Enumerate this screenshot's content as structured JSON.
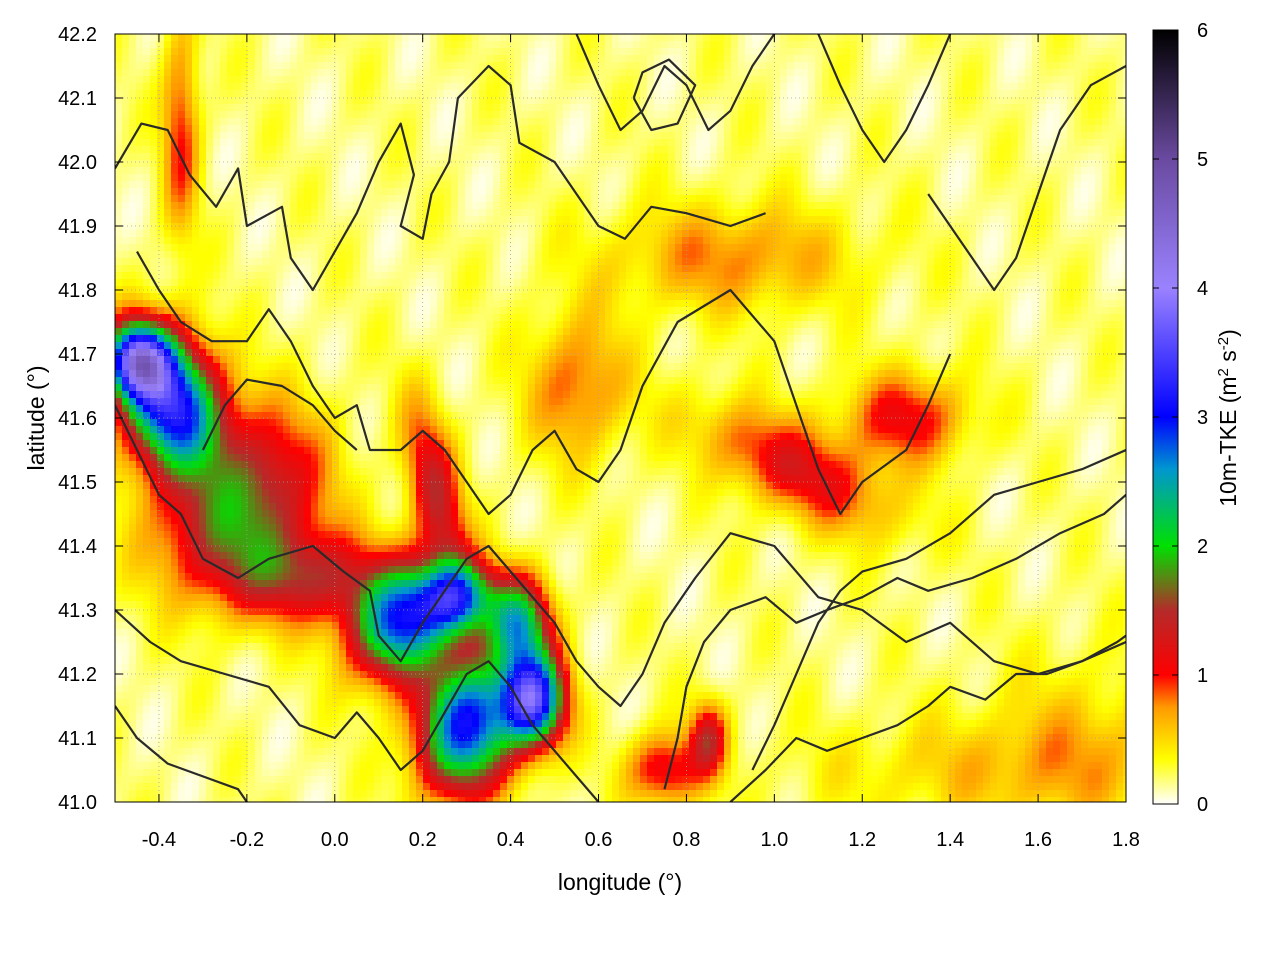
{
  "chart_data": {
    "type": "heatmap",
    "xlabel": "longitude (°)",
    "ylabel": "latitude (°)",
    "xlim": [
      -0.5,
      1.8
    ],
    "ylim": [
      41.0,
      42.2
    ],
    "x_ticks": [
      -0.4,
      -0.2,
      0.0,
      0.2,
      0.4,
      0.6,
      0.8,
      1.0,
      1.2,
      1.4,
      1.6,
      1.8
    ],
    "x_tick_labels": [
      "-0.4",
      "-0.2",
      "0.0",
      "0.2",
      "0.4",
      "0.6",
      "0.8",
      "1.0",
      "1.2",
      "1.4",
      "1.6",
      "1.8"
    ],
    "y_ticks": [
      41.0,
      41.1,
      41.2,
      41.3,
      41.4,
      41.5,
      41.6,
      41.7,
      41.8,
      41.9,
      42.0,
      42.1,
      42.2
    ],
    "y_tick_labels": [
      "41.0",
      "41.1",
      "41.2",
      "41.3",
      "41.4",
      "41.5",
      "41.6",
      "41.7",
      "41.8",
      "41.9",
      "42.0",
      "42.1",
      "42.2"
    ],
    "grid": true,
    "colorbar": {
      "label_main": "10m-TKE (m",
      "label_sup1": "2",
      "label_mid": " s",
      "label_sup2": "-2",
      "label_end": ")",
      "range": [
        0,
        6
      ],
      "ticks": [
        0,
        1,
        2,
        3,
        4,
        5,
        6
      ],
      "tick_labels": [
        "0",
        "1",
        "2",
        "3",
        "4",
        "5",
        "6"
      ],
      "stops": [
        {
          "v": 0.0,
          "color": "#ffffff"
        },
        {
          "v": 0.35,
          "color": "#ffff00"
        },
        {
          "v": 0.75,
          "color": "#ff9a00"
        },
        {
          "v": 1.0,
          "color": "#ff0000"
        },
        {
          "v": 1.5,
          "color": "#b52a2a"
        },
        {
          "v": 2.0,
          "color": "#00e000"
        },
        {
          "v": 2.6,
          "color": "#0096d0"
        },
        {
          "v": 3.0,
          "color": "#0000ff"
        },
        {
          "v": 4.0,
          "color": "#9a82ff"
        },
        {
          "v": 5.0,
          "color": "#6a4aa0"
        },
        {
          "v": 6.0,
          "color": "#000000"
        }
      ]
    },
    "field_features": [
      {
        "lon": -0.37,
        "lat": 41.62,
        "amp": 3.0,
        "sx": 0.08,
        "sy": 0.07,
        "rot": -0.6
      },
      {
        "lon": -0.45,
        "lat": 41.69,
        "amp": 3.2,
        "sx": 0.05,
        "sy": 0.04,
        "rot": 0
      },
      {
        "lon": -0.25,
        "lat": 41.42,
        "amp": 1.2,
        "sx": 0.12,
        "sy": 0.08,
        "rot": 0
      },
      {
        "lon": -0.05,
        "lat": 41.35,
        "amp": 1.1,
        "sx": 0.12,
        "sy": 0.05,
        "rot": 0
      },
      {
        "lon": 0.15,
        "lat": 41.28,
        "amp": 2.6,
        "sx": 0.08,
        "sy": 0.06,
        "rot": 0.3
      },
      {
        "lon": 0.28,
        "lat": 41.32,
        "amp": 2.2,
        "sx": 0.06,
        "sy": 0.04,
        "rot": 0
      },
      {
        "lon": 0.3,
        "lat": 41.12,
        "amp": 2.8,
        "sx": 0.08,
        "sy": 0.07,
        "rot": 0.7
      },
      {
        "lon": 0.45,
        "lat": 41.16,
        "amp": 3.2,
        "sx": 0.05,
        "sy": 0.05,
        "rot": 0
      },
      {
        "lon": 0.42,
        "lat": 41.28,
        "amp": 2.0,
        "sx": 0.05,
        "sy": 0.05,
        "rot": 0
      },
      {
        "lon": 0.23,
        "lat": 41.48,
        "amp": 1.2,
        "sx": 0.04,
        "sy": 0.1,
        "rot": 0.3
      },
      {
        "lon": -0.15,
        "lat": 41.52,
        "amp": 0.9,
        "sx": 0.1,
        "sy": 0.08,
        "rot": 0
      },
      {
        "lon": 1.05,
        "lat": 41.52,
        "amp": 1.0,
        "sx": 0.16,
        "sy": 0.05,
        "rot": -0.3
      },
      {
        "lon": 1.3,
        "lat": 41.6,
        "amp": 0.9,
        "sx": 0.1,
        "sy": 0.05,
        "rot": 0
      },
      {
        "lon": 0.9,
        "lat": 41.85,
        "amp": 0.6,
        "sx": 0.2,
        "sy": 0.06,
        "rot": 0
      },
      {
        "lon": -0.35,
        "lat": 42.05,
        "amp": 0.8,
        "sx": 0.03,
        "sy": 0.12,
        "rot": 0
      },
      {
        "lon": 0.75,
        "lat": 41.05,
        "amp": 1.0,
        "sx": 0.06,
        "sy": 0.04,
        "rot": 0
      },
      {
        "lon": 0.85,
        "lat": 41.1,
        "amp": 1.1,
        "sx": 0.03,
        "sy": 0.04,
        "rot": 0
      },
      {
        "lon": 0.55,
        "lat": 41.65,
        "amp": 0.7,
        "sx": 0.08,
        "sy": 0.08,
        "rot": 0
      },
      {
        "lon": 1.5,
        "lat": 41.05,
        "amp": 0.35,
        "sx": 0.3,
        "sy": 0.06,
        "rot": 0
      },
      {
        "lon": 1.7,
        "lat": 41.1,
        "amp": 0.3,
        "sx": 0.15,
        "sy": 0.1,
        "rot": 0
      }
    ],
    "contours": [
      [
        [
          -0.5,
          41.99
        ],
        [
          -0.44,
          42.06
        ],
        [
          -0.38,
          42.05
        ],
        [
          -0.33,
          41.98
        ],
        [
          -0.27,
          41.93
        ],
        [
          -0.22,
          41.99
        ],
        [
          -0.2,
          41.9
        ],
        [
          -0.12,
          41.93
        ],
        [
          -0.1,
          41.85
        ],
        [
          -0.05,
          41.8
        ],
        [
          0.0,
          41.86
        ],
        [
          0.05,
          41.92
        ],
        [
          0.1,
          42.0
        ],
        [
          0.15,
          42.06
        ],
        [
          0.18,
          41.98
        ],
        [
          0.15,
          41.9
        ],
        [
          0.2,
          41.88
        ],
        [
          0.22,
          41.95
        ],
        [
          0.26,
          42.0
        ],
        [
          0.28,
          42.1
        ],
        [
          0.35,
          42.15
        ],
        [
          0.4,
          42.12
        ],
        [
          0.42,
          42.03
        ],
        [
          0.5,
          42.0
        ],
        [
          0.55,
          41.95
        ],
        [
          0.6,
          41.9
        ],
        [
          0.66,
          41.88
        ],
        [
          0.72,
          41.93
        ],
        [
          0.8,
          41.92
        ],
        [
          0.9,
          41.9
        ],
        [
          0.98,
          41.92
        ]
      ],
      [
        [
          -0.45,
          41.86
        ],
        [
          -0.4,
          41.8
        ],
        [
          -0.35,
          41.75
        ],
        [
          -0.28,
          41.72
        ],
        [
          -0.2,
          41.72
        ],
        [
          -0.15,
          41.77
        ],
        [
          -0.1,
          41.72
        ],
        [
          -0.05,
          41.65
        ],
        [
          0.0,
          41.6
        ],
        [
          0.05,
          41.62
        ],
        [
          0.08,
          41.55
        ],
        [
          0.15,
          41.55
        ],
        [
          0.2,
          41.58
        ],
        [
          0.25,
          41.55
        ],
        [
          0.3,
          41.5
        ],
        [
          0.35,
          41.45
        ],
        [
          0.4,
          41.48
        ],
        [
          0.45,
          41.55
        ],
        [
          0.5,
          41.58
        ],
        [
          0.55,
          41.52
        ],
        [
          0.6,
          41.5
        ],
        [
          0.65,
          41.55
        ],
        [
          0.7,
          41.65
        ],
        [
          0.78,
          41.75
        ],
        [
          0.9,
          41.8
        ],
        [
          1.0,
          41.72
        ],
        [
          1.05,
          41.62
        ],
        [
          1.1,
          41.52
        ],
        [
          1.15,
          41.45
        ],
        [
          1.2,
          41.5
        ],
        [
          1.3,
          41.55
        ],
        [
          1.35,
          41.62
        ],
        [
          1.4,
          41.7
        ]
      ],
      [
        [
          -0.5,
          41.62
        ],
        [
          -0.45,
          41.55
        ],
        [
          -0.4,
          41.48
        ],
        [
          -0.35,
          41.45
        ],
        [
          -0.3,
          41.38
        ],
        [
          -0.22,
          41.35
        ],
        [
          -0.15,
          41.38
        ],
        [
          -0.05,
          41.4
        ],
        [
          0.02,
          41.36
        ],
        [
          0.08,
          41.33
        ],
        [
          0.1,
          41.26
        ],
        [
          0.15,
          41.22
        ],
        [
          0.2,
          41.28
        ],
        [
          0.25,
          41.33
        ],
        [
          0.3,
          41.38
        ],
        [
          0.35,
          41.4
        ],
        [
          0.4,
          41.36
        ],
        [
          0.45,
          41.32
        ],
        [
          0.5,
          41.28
        ],
        [
          0.55,
          41.22
        ],
        [
          0.6,
          41.18
        ],
        [
          0.65,
          41.15
        ],
        [
          0.7,
          41.2
        ],
        [
          0.75,
          41.28
        ],
        [
          0.82,
          41.35
        ],
        [
          0.9,
          41.42
        ],
        [
          1.0,
          41.4
        ],
        [
          1.1,
          41.32
        ],
        [
          1.2,
          41.3
        ],
        [
          1.3,
          41.25
        ],
        [
          1.4,
          41.28
        ],
        [
          1.5,
          41.22
        ],
        [
          1.6,
          41.2
        ],
        [
          1.7,
          41.22
        ],
        [
          1.8,
          41.25
        ]
      ],
      [
        [
          -0.5,
          41.3
        ],
        [
          -0.42,
          41.25
        ],
        [
          -0.35,
          41.22
        ],
        [
          -0.25,
          41.2
        ],
        [
          -0.15,
          41.18
        ],
        [
          -0.08,
          41.12
        ],
        [
          0.0,
          41.1
        ],
        [
          0.05,
          41.14
        ],
        [
          0.1,
          41.1
        ],
        [
          0.15,
          41.05
        ],
        [
          0.2,
          41.08
        ],
        [
          0.25,
          41.14
        ],
        [
          0.3,
          41.2
        ],
        [
          0.35,
          41.22
        ],
        [
          0.4,
          41.18
        ],
        [
          0.45,
          41.12
        ],
        [
          0.5,
          41.08
        ],
        [
          0.55,
          41.04
        ],
        [
          0.6,
          41.0
        ]
      ],
      [
        [
          -0.5,
          41.15
        ],
        [
          -0.45,
          41.1
        ],
        [
          -0.38,
          41.06
        ],
        [
          -0.3,
          41.04
        ],
        [
          -0.22,
          41.02
        ],
        [
          -0.2,
          41.0
        ]
      ],
      [
        [
          0.9,
          41.0
        ],
        [
          0.98,
          41.05
        ],
        [
          1.05,
          41.1
        ],
        [
          1.12,
          41.08
        ],
        [
          1.2,
          41.1
        ],
        [
          1.28,
          41.12
        ],
        [
          1.35,
          41.15
        ],
        [
          1.4,
          41.18
        ],
        [
          1.48,
          41.16
        ],
        [
          1.55,
          41.2
        ],
        [
          1.62,
          41.2
        ],
        [
          1.7,
          41.22
        ],
        [
          1.78,
          41.25
        ],
        [
          1.8,
          41.26
        ]
      ],
      [
        [
          0.95,
          41.05
        ],
        [
          1.0,
          41.12
        ],
        [
          1.05,
          41.2
        ],
        [
          1.1,
          41.28
        ],
        [
          1.15,
          41.33
        ],
        [
          1.2,
          41.36
        ],
        [
          1.3,
          41.38
        ],
        [
          1.4,
          41.42
        ],
        [
          1.5,
          41.48
        ],
        [
          1.6,
          41.5
        ],
        [
          1.7,
          41.52
        ],
        [
          1.8,
          41.55
        ]
      ],
      [
        [
          0.75,
          41.02
        ],
        [
          0.78,
          41.1
        ],
        [
          0.8,
          41.18
        ],
        [
          0.84,
          41.25
        ],
        [
          0.9,
          41.3
        ],
        [
          0.98,
          41.32
        ],
        [
          1.05,
          41.28
        ],
        [
          1.12,
          41.3
        ],
        [
          1.2,
          41.32
        ],
        [
          1.28,
          41.35
        ],
        [
          1.35,
          41.33
        ],
        [
          1.45,
          41.35
        ],
        [
          1.55,
          41.38
        ],
        [
          1.65,
          41.42
        ],
        [
          1.75,
          41.45
        ],
        [
          1.8,
          41.48
        ]
      ],
      [
        [
          1.35,
          41.95
        ],
        [
          1.4,
          41.9
        ],
        [
          1.45,
          41.85
        ],
        [
          1.5,
          41.8
        ],
        [
          1.55,
          41.85
        ],
        [
          1.6,
          41.95
        ],
        [
          1.65,
          42.05
        ],
        [
          1.72,
          42.12
        ],
        [
          1.8,
          42.15
        ]
      ],
      [
        [
          1.1,
          42.2
        ],
        [
          1.15,
          42.12
        ],
        [
          1.2,
          42.05
        ],
        [
          1.25,
          42.0
        ],
        [
          1.3,
          42.05
        ],
        [
          1.35,
          42.12
        ],
        [
          1.4,
          42.2
        ]
      ],
      [
        [
          0.55,
          42.2
        ],
        [
          0.6,
          42.12
        ],
        [
          0.65,
          42.05
        ],
        [
          0.7,
          42.08
        ],
        [
          0.75,
          42.15
        ],
        [
          0.8,
          42.12
        ],
        [
          0.85,
          42.05
        ],
        [
          0.9,
          42.08
        ],
        [
          0.95,
          42.15
        ],
        [
          1.0,
          42.2
        ]
      ],
      [
        [
          -0.3,
          41.55
        ],
        [
          -0.25,
          41.62
        ],
        [
          -0.2,
          41.66
        ],
        [
          -0.12,
          41.65
        ],
        [
          -0.05,
          41.62
        ],
        [
          0.0,
          41.58
        ],
        [
          0.05,
          41.55
        ]
      ],
      [
        [
          0.68,
          42.1
        ],
        [
          0.72,
          42.05
        ],
        [
          0.78,
          42.06
        ],
        [
          0.82,
          42.12
        ],
        [
          0.76,
          42.16
        ],
        [
          0.7,
          42.14
        ],
        [
          0.68,
          42.1
        ]
      ]
    ]
  }
}
